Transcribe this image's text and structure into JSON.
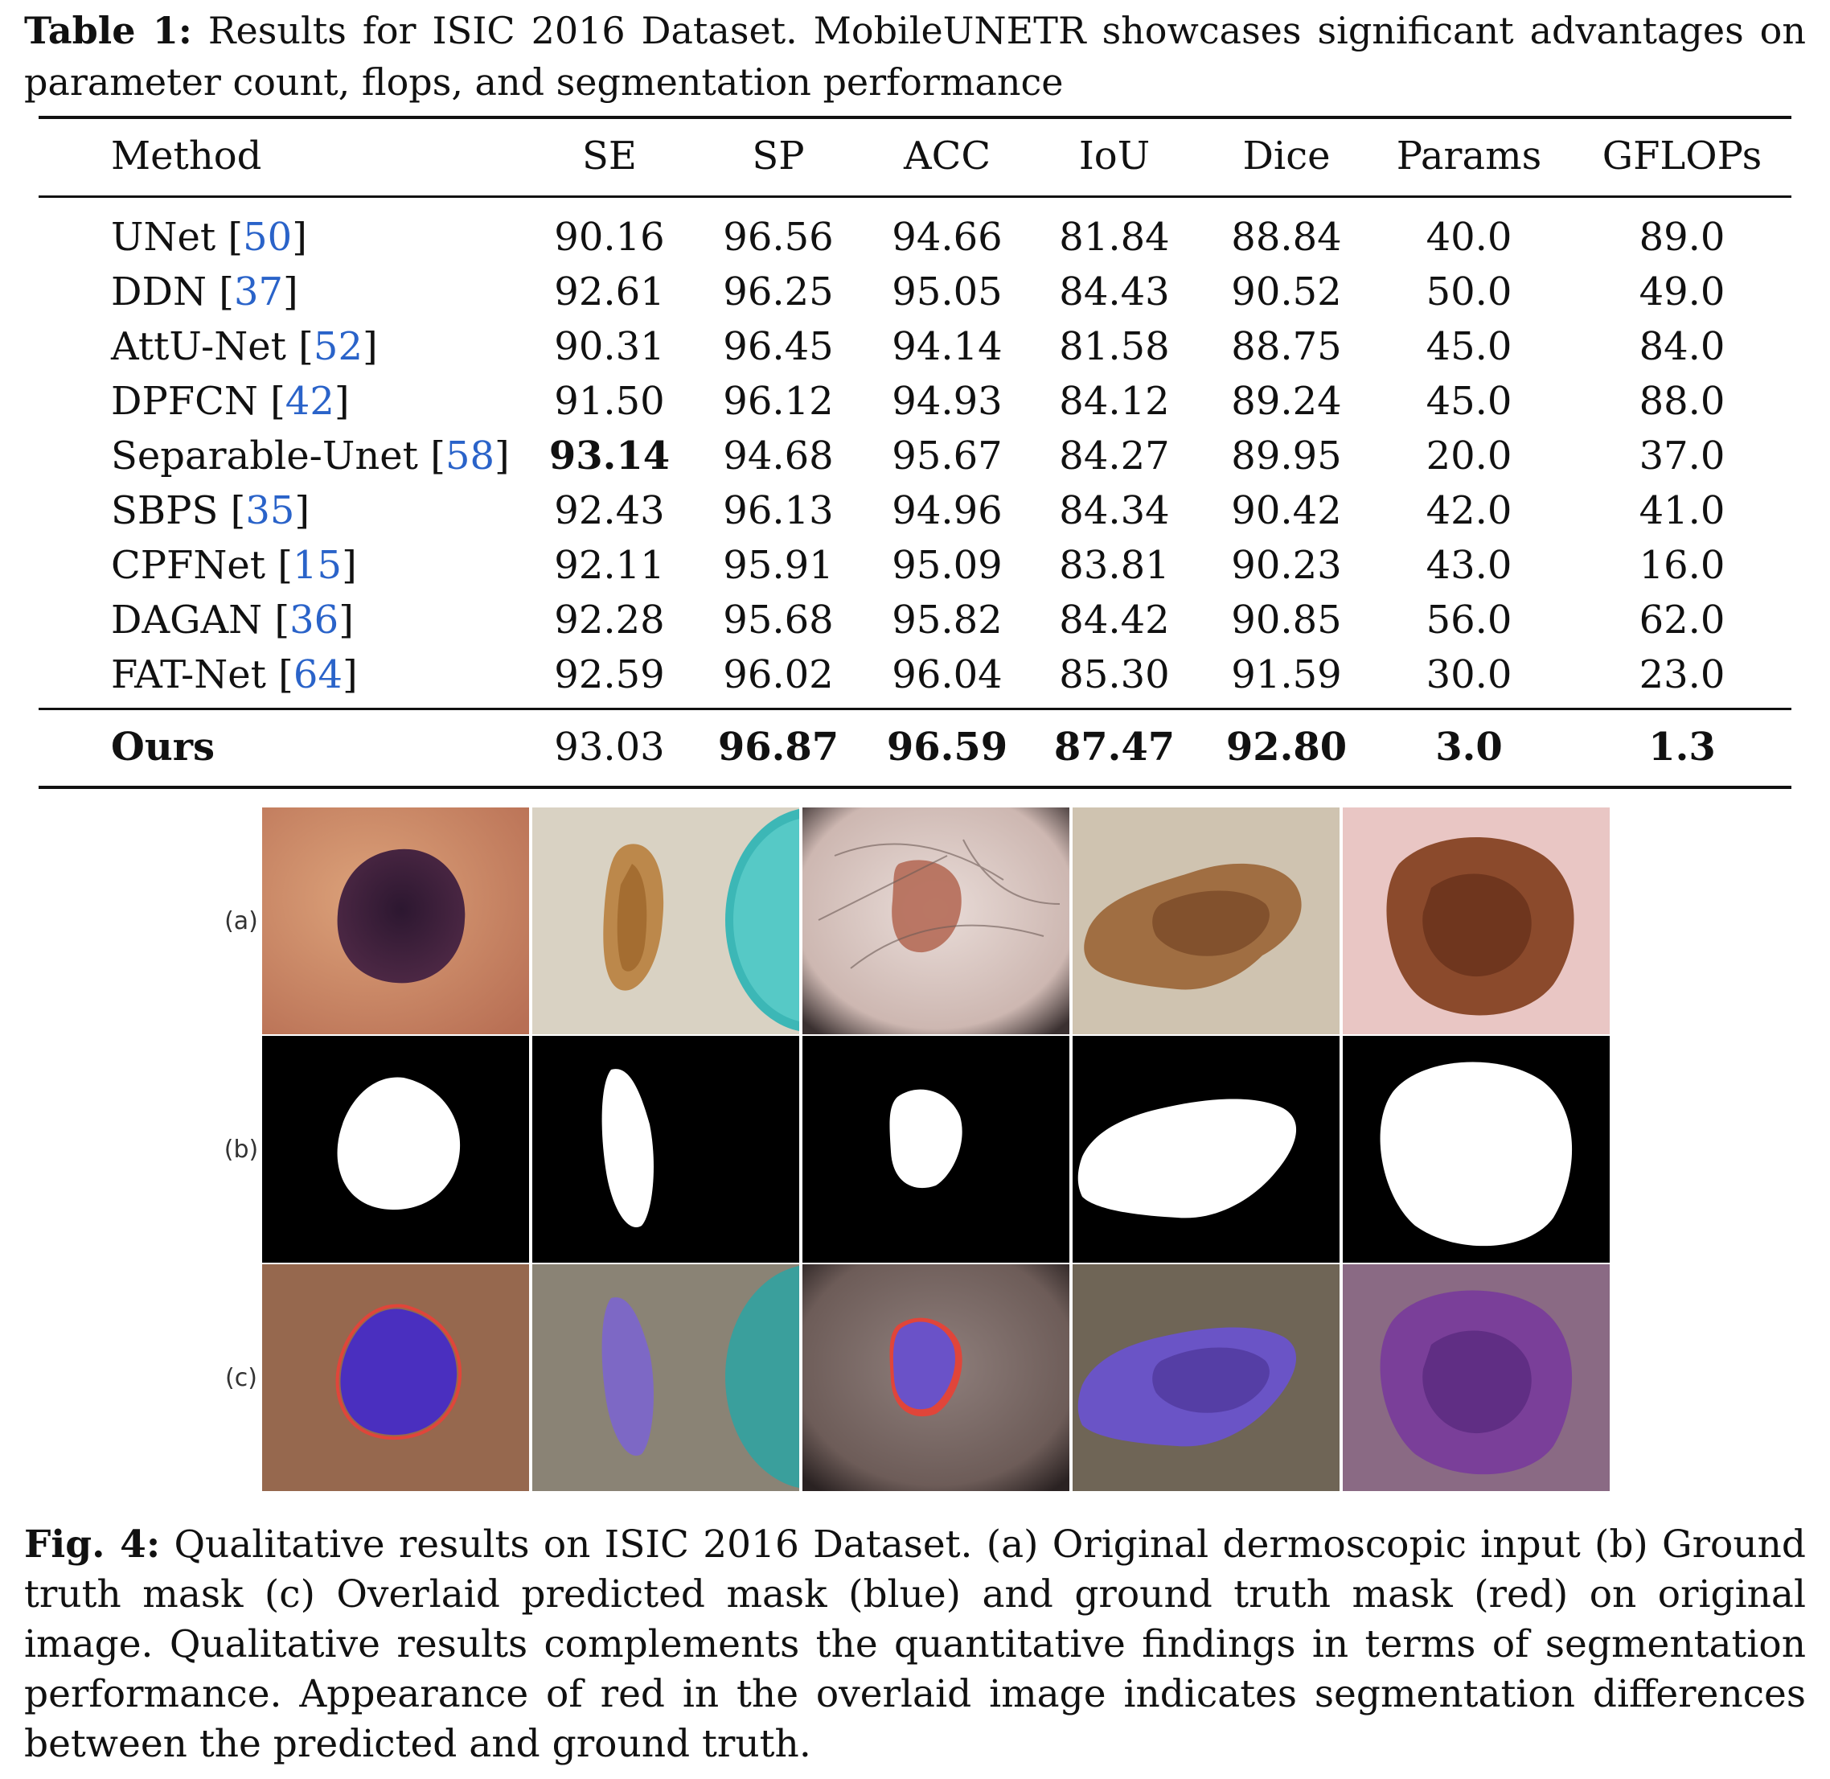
{
  "table_caption": {
    "label": "Table 1:",
    "text": "Results for ISIC 2016 Dataset. MobileUNETR showcases significant advantages on parameter count, flops, and segmentation performance"
  },
  "table": {
    "headers": [
      "Method",
      "SE",
      "SP",
      "ACC",
      "IoU",
      "Dice",
      "Params",
      "GFLOPs"
    ],
    "rows": [
      {
        "method": "UNet",
        "ref": "50",
        "values": [
          "90.16",
          "96.56",
          "94.66",
          "81.84",
          "88.84",
          "40.0",
          "89.0"
        ]
      },
      {
        "method": "DDN",
        "ref": "37",
        "values": [
          "92.61",
          "96.25",
          "95.05",
          "84.43",
          "90.52",
          "50.0",
          "49.0"
        ]
      },
      {
        "method": "AttU-Net",
        "ref": "52",
        "values": [
          "90.31",
          "96.45",
          "94.14",
          "81.58",
          "88.75",
          "45.0",
          "84.0"
        ]
      },
      {
        "method": "DPFCN",
        "ref": "42",
        "values": [
          "91.50",
          "96.12",
          "94.93",
          "84.12",
          "89.24",
          "45.0",
          "88.0"
        ]
      },
      {
        "method": "Separable-Unet",
        "ref": "58",
        "values": [
          "93.14",
          "94.68",
          "95.67",
          "84.27",
          "89.95",
          "20.0",
          "37.0"
        ]
      },
      {
        "method": "SBPS",
        "ref": "35",
        "values": [
          "92.43",
          "96.13",
          "94.96",
          "84.34",
          "90.42",
          "42.0",
          "41.0"
        ]
      },
      {
        "method": "CPFNet",
        "ref": "15",
        "values": [
          "92.11",
          "95.91",
          "95.09",
          "83.81",
          "90.23",
          "43.0",
          "16.0"
        ]
      },
      {
        "method": "DAGAN",
        "ref": "36",
        "values": [
          "92.28",
          "95.68",
          "95.82",
          "84.42",
          "90.85",
          "56.0",
          "62.0"
        ]
      },
      {
        "method": "FAT-Net",
        "ref": "64",
        "values": [
          "92.59",
          "96.02",
          "96.04",
          "85.30",
          "91.59",
          "30.0",
          "23.0"
        ]
      }
    ],
    "ours": {
      "method": "Ours",
      "values": [
        "93.03",
        "96.87",
        "96.59",
        "87.47",
        "92.80",
        "3.0",
        "1.3"
      ]
    }
  },
  "figure": {
    "row_labels": [
      "(a)",
      "(b)",
      "(c)"
    ],
    "colors": {
      "predicted_overlay": "#5a3fd6",
      "ground_truth_outline": "#e0453a"
    }
  },
  "figure_caption": {
    "label": "Fig. 4:",
    "text": "Qualitative results on ISIC 2016 Dataset. (a) Original dermoscopic input (b) Ground truth mask (c) Overlaid predicted mask (blue) and ground truth mask (red) on original image. Qualitative results complements the quantitative findings in terms of segmentation performance. Appearance of red in the overlaid image indicates segmentation differences between the predicted and ground truth."
  }
}
